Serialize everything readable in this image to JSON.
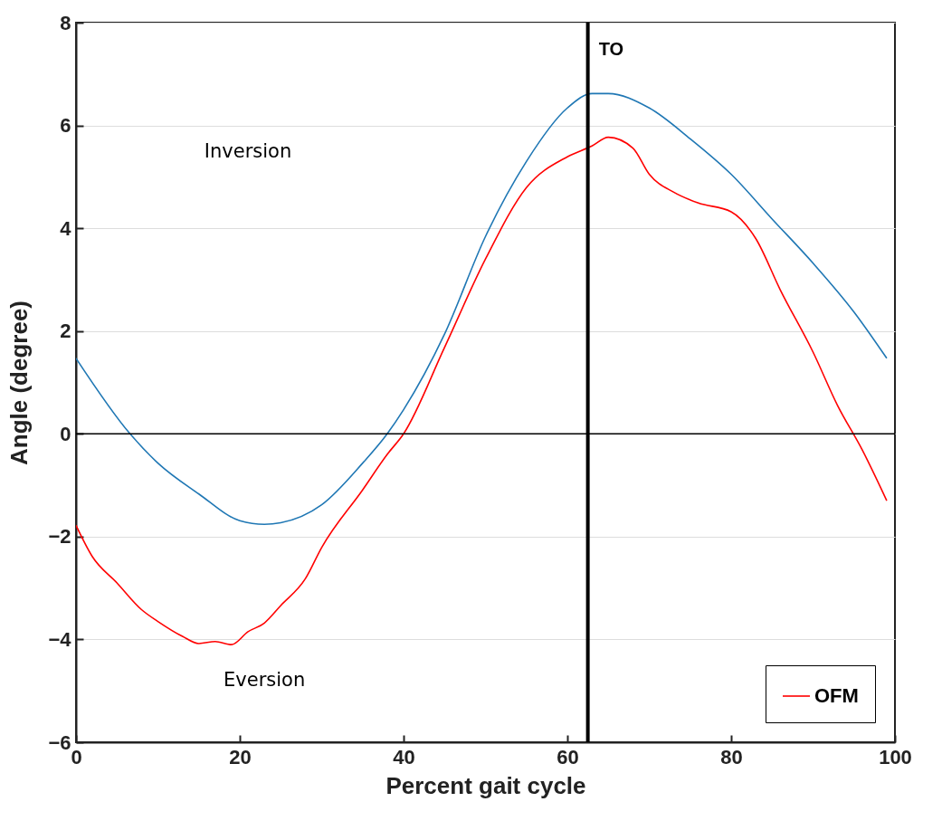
{
  "chart_data": {
    "type": "line",
    "xlabel": "Percent gait cycle",
    "ylabel": "Angle (degree)",
    "xlim": [
      0,
      100
    ],
    "xticks": [
      0,
      20,
      40,
      60,
      80,
      100
    ],
    "ylim": [
      -6,
      8
    ],
    "yticks": [
      -6,
      -4,
      -2,
      0,
      2,
      4,
      6,
      8
    ],
    "grid": "y",
    "legend": "bottom right",
    "line_style": "solid",
    "series": [
      {
        "color": "#1f77b4",
        "x": [
          0,
          6.6,
          10,
          15,
          20,
          23,
          25,
          30,
          35,
          38,
          40,
          45,
          50,
          55,
          60,
          63,
          65,
          70,
          75,
          80,
          85,
          90,
          95,
          99
        ],
        "values": [
          1.47,
          0,
          -0.57,
          -1.17,
          -1.69,
          -1.76,
          -1.73,
          -1.38,
          -0.57,
          0,
          0.47,
          1.94,
          3.84,
          5.3,
          6.34,
          6.62,
          6.62,
          6.34,
          5.74,
          5.05,
          4.18,
          3.32,
          2.37,
          1.47
        ]
      },
      {
        "name": "OFM",
        "color": "#ff0000",
        "x": [
          0,
          2,
          5,
          8,
          10,
          13,
          15,
          17,
          19,
          21,
          23,
          25,
          28,
          30,
          35,
          38,
          40,
          45,
          50,
          55,
          60,
          63,
          65,
          68,
          70,
          73,
          76,
          80,
          83,
          86,
          90,
          93,
          96,
          99
        ],
        "values": [
          -1.78,
          -2.39,
          -2.9,
          -3.42,
          -3.65,
          -3.94,
          -4.08,
          -4.04,
          -4.1,
          -3.85,
          -3.68,
          -3.34,
          -2.82,
          -2.21,
          -1.09,
          -0.4,
          0,
          1.68,
          3.4,
          4.79,
          5.39,
          5.6,
          5.77,
          5.56,
          5.05,
          4.7,
          4.49,
          4.32,
          3.8,
          2.8,
          1.59,
          0.55,
          -0.31,
          -1.3
        ]
      }
    ],
    "ref_lines": [
      {
        "axis": "x",
        "value": 62.5,
        "label": "TO",
        "color": "#000000"
      },
      {
        "axis": "y",
        "value": 0,
        "color": "#000000"
      }
    ],
    "annotations": [
      "Inversion",
      "Eversion"
    ]
  }
}
